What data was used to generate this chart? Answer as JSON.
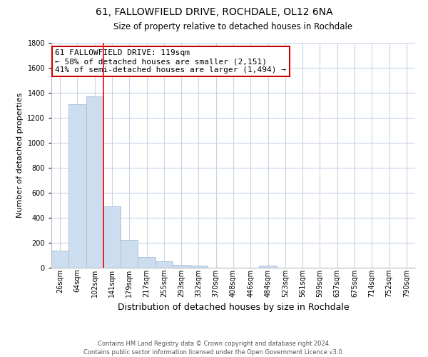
{
  "title": "61, FALLOWFIELD DRIVE, ROCHDALE, OL12 6NA",
  "subtitle": "Size of property relative to detached houses in Rochdale",
  "xlabel": "Distribution of detached houses by size in Rochdale",
  "ylabel": "Number of detached properties",
  "bar_labels": [
    "26sqm",
    "64sqm",
    "102sqm",
    "141sqm",
    "179sqm",
    "217sqm",
    "255sqm",
    "293sqm",
    "332sqm",
    "370sqm",
    "408sqm",
    "446sqm",
    "484sqm",
    "523sqm",
    "561sqm",
    "599sqm",
    "637sqm",
    "675sqm",
    "714sqm",
    "752sqm",
    "790sqm"
  ],
  "bar_values": [
    140,
    1310,
    1370,
    490,
    225,
    85,
    50,
    25,
    18,
    0,
    0,
    0,
    18,
    0,
    0,
    0,
    0,
    0,
    0,
    0,
    0
  ],
  "bar_color": "#ccddf0",
  "bar_edge_color": "#aabbd4",
  "red_line_index": 2.5,
  "ylim": [
    0,
    1800
  ],
  "yticks": [
    0,
    200,
    400,
    600,
    800,
    1000,
    1200,
    1400,
    1600,
    1800
  ],
  "annotation_box_text": "61 FALLOWFIELD DRIVE: 119sqm\n← 58% of detached houses are smaller (2,151)\n41% of semi-detached houses are larger (1,494) →",
  "footer_line1": "Contains HM Land Registry data © Crown copyright and database right 2024.",
  "footer_line2": "Contains public sector information licensed under the Open Government Licence v3.0.",
  "background_color": "#ffffff",
  "grid_color": "#c8d4e8",
  "annotation_box_color": "#ffffff",
  "annotation_box_edge_color": "#cc0000",
  "title_fontsize": 10,
  "subtitle_fontsize": 8.5,
  "ylabel_fontsize": 8,
  "xlabel_fontsize": 9,
  "tick_fontsize": 7,
  "footer_fontsize": 6,
  "ann_fontsize": 8
}
